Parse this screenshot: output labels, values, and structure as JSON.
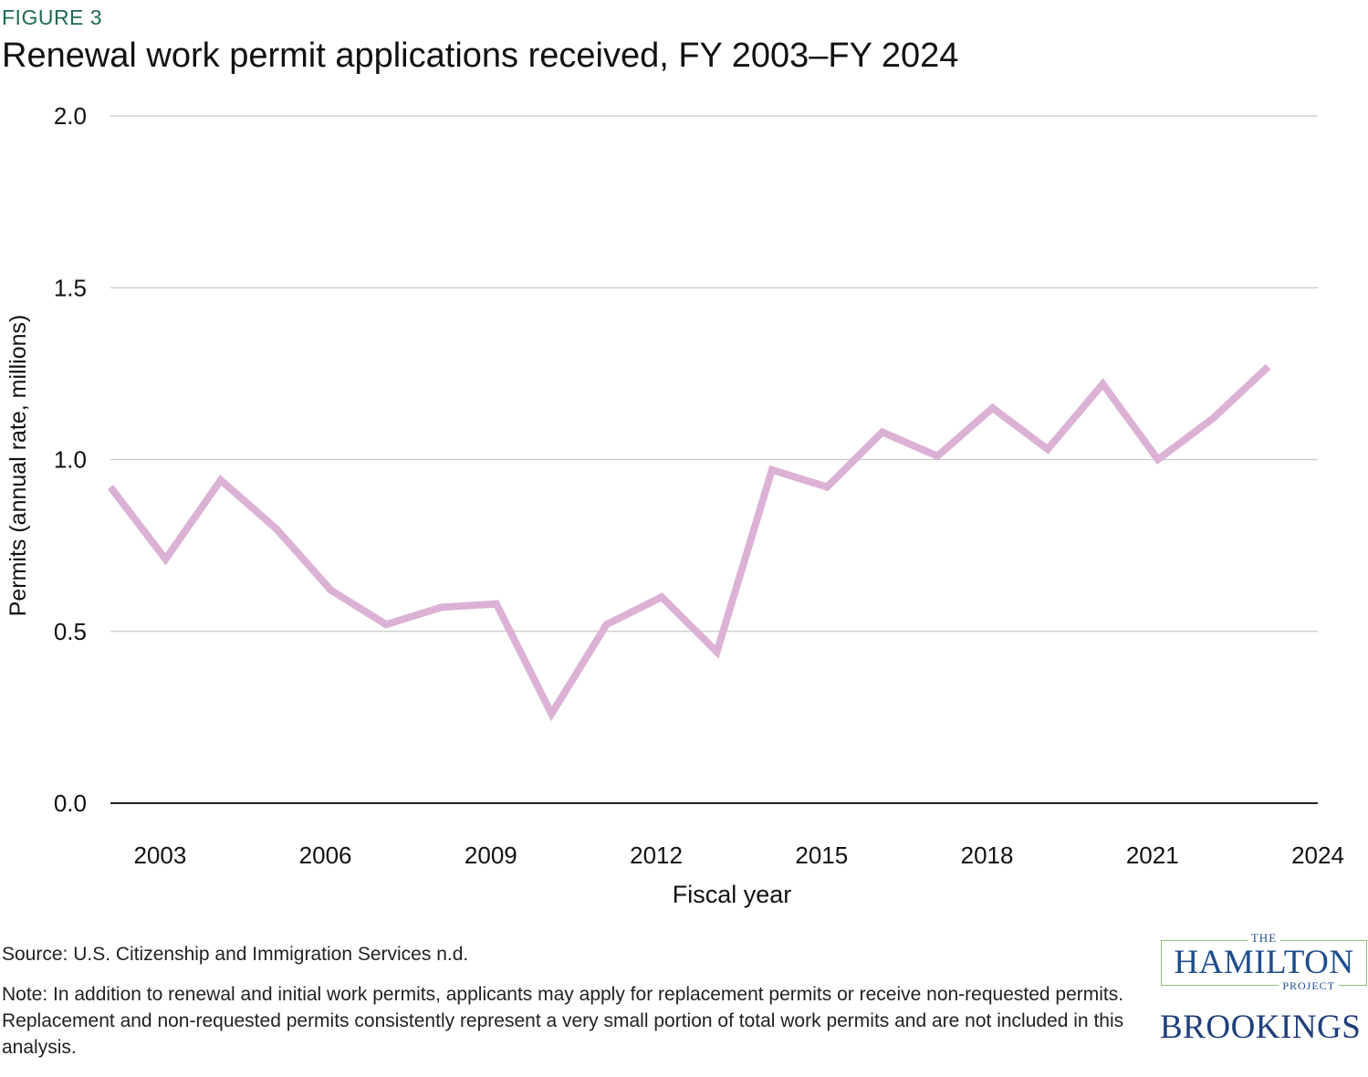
{
  "header": {
    "figure_label": "FIGURE 3",
    "title": "Renewal work permit applications received, FY 2003–FY 2024"
  },
  "chart_data": {
    "type": "line",
    "title": "Renewal work permit applications received, FY 2003–FY 2024",
    "xlabel": "Fiscal year",
    "ylabel": "Permits (annual rate, millions)",
    "xlim": [
      2002.1,
      2024
    ],
    "ylim": [
      0,
      2.0
    ],
    "xticks": [
      2003,
      2006,
      2009,
      2012,
      2015,
      2018,
      2021,
      2024
    ],
    "yticks": [
      0.0,
      0.5,
      1.0,
      1.5,
      2.0
    ],
    "ytick_labels": [
      "0.0",
      "0.5",
      "1.0",
      "1.5",
      "2.0"
    ],
    "grid": "horizontal",
    "line_color": "#dcb1d6",
    "series": [
      {
        "x": [
          2002.1,
          2003.1,
          2004.1,
          2005.1,
          2006.1,
          2007.1,
          2008.1,
          2009.1,
          2010.1,
          2011.1,
          2012.1,
          2013.1,
          2014.1,
          2015.1,
          2016.1,
          2017.1,
          2018.1,
          2019.1,
          2020.1,
          2021.1,
          2022.1,
          2023.1
        ],
        "values": [
          0.92,
          0.71,
          0.94,
          0.8,
          0.62,
          0.52,
          0.57,
          0.58,
          0.26,
          0.52,
          0.6,
          0.44,
          0.97,
          0.92,
          1.08,
          1.01,
          1.15,
          1.03,
          1.22,
          1.0,
          1.12,
          1.27
        ]
      }
    ]
  },
  "footer": {
    "source": "Source: U.S. Citizenship and Immigration Services n.d.",
    "note": "Note: In addition to renewal and initial work permits, applicants may apply for replacement permits or receive non-requested permits. Replacement and non-requested permits consistently represent a very small portion of total work permits and are not included in this analysis."
  },
  "logos": {
    "hamilton_the": "THE",
    "hamilton_main": "HAMILTON",
    "hamilton_project": "PROJECT",
    "brookings": "BROOKINGS",
    "hamilton_color": "#1f4e8c",
    "hamilton_border": "#8fbf7a",
    "brookings_color": "#1f3f7a"
  }
}
